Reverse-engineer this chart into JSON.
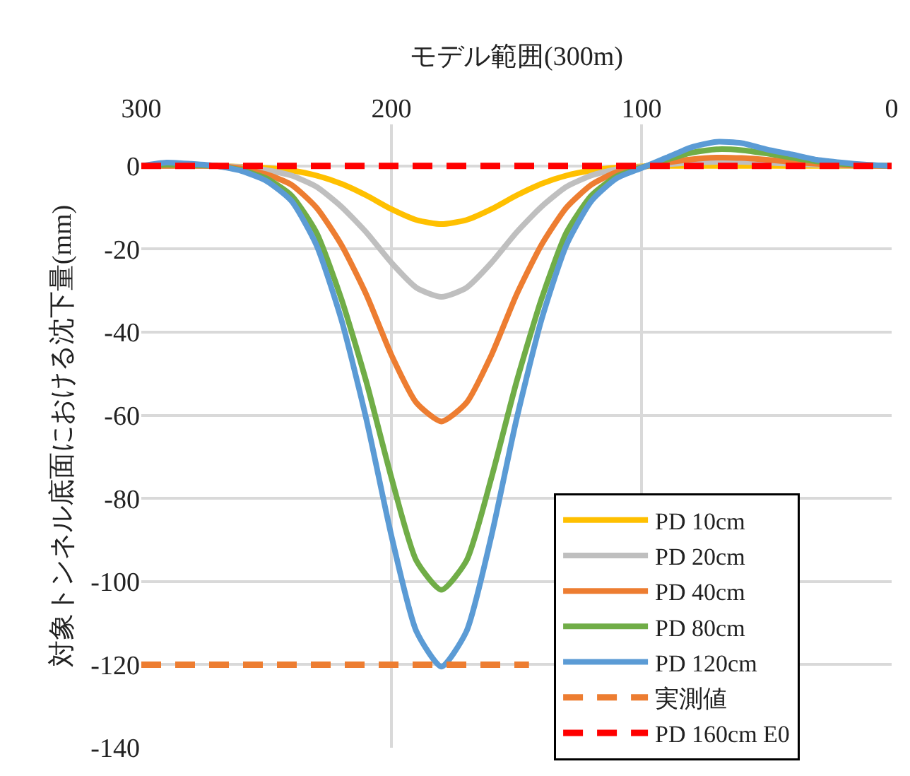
{
  "chart_data": {
    "type": "line",
    "xlabel": "モデル範囲(300m)",
    "ylabel": "対象トンネル底面における沈下量(mm)",
    "x": [
      300,
      290,
      280,
      270,
      260,
      250,
      240,
      230,
      220,
      210,
      200,
      190,
      180,
      170,
      160,
      150,
      140,
      130,
      120,
      110,
      100,
      90,
      80,
      70,
      60,
      50,
      40,
      30,
      20,
      10,
      0
    ],
    "xlim": [
      300,
      0
    ],
    "xticks": [
      300,
      200,
      100,
      0
    ],
    "ylim": [
      -140,
      10
    ],
    "yticks": [
      -140,
      -120,
      -100,
      -80,
      -60,
      -40,
      -20,
      0
    ],
    "grid": true,
    "legend": "bottom right",
    "line_style": "solid",
    "marker": "none",
    "series": [
      {
        "name": "PD 10cm",
        "color": "#ffc000",
        "values": [
          null,
          null,
          null,
          0,
          -0.2,
          -0.5,
          -1.1,
          -2.3,
          -4.3,
          -7.1,
          -10.4,
          -13,
          -14,
          -13,
          -10.4,
          -7.1,
          -4.3,
          -2.3,
          -1.1,
          -0.4,
          -0.1,
          0,
          0,
          0,
          0,
          0,
          0,
          0,
          0,
          0,
          0
        ]
      },
      {
        "name": "PD 20cm",
        "color": "#bfbfbf",
        "values": [
          0,
          0,
          0,
          0,
          -0.3,
          -1,
          -2.3,
          -5,
          -9.8,
          -16,
          -23.3,
          -29.3,
          -31.5,
          -29.3,
          -23.3,
          -16,
          -9.8,
          -5,
          -2.3,
          -0.8,
          -0.2,
          0.4,
          0.8,
          1,
          1,
          0.8,
          0.5,
          0.3,
          0.1,
          0,
          0
        ]
      },
      {
        "name": "PD 40cm",
        "color": "#ed7d31",
        "values": [
          0,
          0,
          0,
          0,
          -0.6,
          -2,
          -4.5,
          -10,
          -19,
          -31,
          -45.5,
          -57,
          -61.5,
          -57,
          -45.5,
          -31,
          -19,
          -10,
          -4.5,
          -1.5,
          -0.3,
          0.8,
          1.6,
          2,
          1.9,
          1.5,
          1,
          0.5,
          0.2,
          0,
          0
        ]
      },
      {
        "name": "PD 80cm",
        "color": "#70ad47",
        "values": [
          0,
          0.3,
          0.2,
          0,
          -1,
          -3,
          -7.1,
          -16,
          -32,
          -52,
          -75,
          -95,
          -102,
          -95,
          -75,
          -52,
          -32,
          -16,
          -7.1,
          -2.5,
          -0.4,
          1.5,
          3.2,
          4,
          3.8,
          3,
          2,
          1.1,
          0.5,
          0.2,
          0
        ]
      },
      {
        "name": "PD 120cm",
        "color": "#5b9bd5",
        "values": [
          0,
          0.8,
          0.5,
          0,
          -1.2,
          -3.6,
          -8.4,
          -19,
          -37,
          -61,
          -89,
          -112,
          -120.5,
          -112,
          -89,
          -61,
          -37,
          -19,
          -8.4,
          -3,
          -0.5,
          2,
          4.5,
          5.8,
          5.5,
          4,
          2.8,
          1.5,
          0.8,
          0.3,
          0
        ]
      },
      {
        "name": "実測値",
        "color": "#ed7d31",
        "line_style": "dashed",
        "x": [
          300,
          145
        ],
        "values": [
          -120,
          -120
        ]
      },
      {
        "name": "PD 160cm E0",
        "color": "#ff0000",
        "line_style": "dashed",
        "x": [
          300,
          0
        ],
        "values": [
          0,
          0
        ]
      }
    ]
  }
}
